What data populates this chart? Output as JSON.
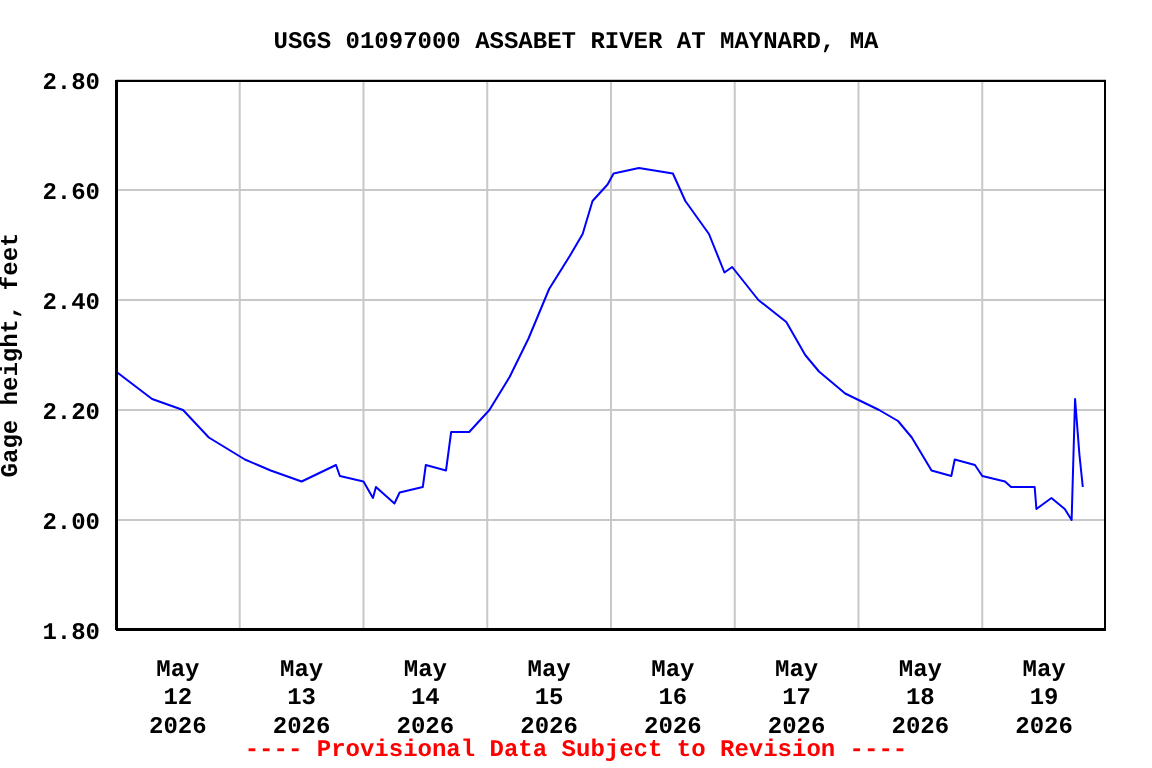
{
  "chart_data": {
    "type": "line",
    "title": "USGS 01097000 ASSABET RIVER AT MAYNARD, MA",
    "ylabel": "Gage height, feet",
    "annotations": [
      "---- Provisional Data Subject to Revision ----"
    ],
    "x": [
      "2026-05-12T00:00",
      "2026-05-12T07:00",
      "2026-05-12T13:00",
      "2026-05-12T18:00",
      "2026-05-13T01:00",
      "2026-05-13T06:00",
      "2026-05-13T12:00",
      "2026-05-13T18:40",
      "2026-05-13T19:25",
      "2026-05-14T00:00",
      "2026-05-14T01:50",
      "2026-05-14T02:25",
      "2026-05-14T06:00",
      "2026-05-14T07:00",
      "2026-05-14T11:30",
      "2026-05-14T12:05",
      "2026-05-14T16:00",
      "2026-05-14T17:00",
      "2026-05-14T20:30",
      "2026-05-15T00:25",
      "2026-05-15T04:20",
      "2026-05-15T08:00",
      "2026-05-15T12:00",
      "2026-05-15T16:00",
      "2026-05-15T18:30",
      "2026-05-15T20:25",
      "2026-05-15T23:20",
      "2026-05-16T00:30",
      "2026-05-16T05:25",
      "2026-05-16T12:00",
      "2026-05-16T14:25",
      "2026-05-16T19:00",
      "2026-05-16T22:00",
      "2026-05-16T23:30",
      "2026-05-17T04:35",
      "2026-05-17T10:00",
      "2026-05-17T13:40",
      "2026-05-17T16:20",
      "2026-05-17T21:25",
      "2026-05-18T04:00",
      "2026-05-18T07:40",
      "2026-05-18T10:20",
      "2026-05-18T14:10",
      "2026-05-18T18:00",
      "2026-05-18T18:40",
      "2026-05-18T22:35",
      "2026-05-19T00:00",
      "2026-05-19T04:25",
      "2026-05-19T05:35",
      "2026-05-19T10:10",
      "2026-05-19T10:30",
      "2026-05-19T13:25",
      "2026-05-19T16:00",
      "2026-05-19T17:20",
      "2026-05-19T18:00",
      "2026-05-19T18:50",
      "2026-05-19T19:30"
    ],
    "series": [
      {
        "color": "#0000ff",
        "values": [
          2.27,
          2.22,
          2.2,
          2.15,
          2.11,
          2.09,
          2.07,
          2.1,
          2.08,
          2.07,
          2.04,
          2.06,
          2.03,
          2.05,
          2.06,
          2.1,
          2.09,
          2.16,
          2.16,
          2.2,
          2.26,
          2.33,
          2.42,
          2.48,
          2.52,
          2.58,
          2.61,
          2.63,
          2.64,
          2.63,
          2.58,
          2.52,
          2.45,
          2.46,
          2.4,
          2.36,
          2.3,
          2.27,
          2.23,
          2.2,
          2.18,
          2.15,
          2.09,
          2.08,
          2.11,
          2.1,
          2.08,
          2.07,
          2.06,
          2.06,
          2.02,
          2.04,
          2.02,
          2.0,
          2.22,
          2.12,
          2.06
        ]
      }
    ],
    "xlim": [
      "2026-05-12T00:00",
      "2026-05-20T00:00"
    ],
    "xticks": [
      {
        "value": "2026-05-12T12:00",
        "label": "May\n12\n2026"
      },
      {
        "value": "2026-05-13T00:00",
        "label": null
      },
      {
        "value": "2026-05-13T12:00",
        "label": "May\n13\n2026"
      },
      {
        "value": "2026-05-14T00:00",
        "label": null
      },
      {
        "value": "2026-05-14T12:00",
        "label": "May\n14\n2026"
      },
      {
        "value": "2026-05-15T00:00",
        "label": null
      },
      {
        "value": "2026-05-15T12:00",
        "label": "May\n15\n2026"
      },
      {
        "value": "2026-05-16T00:00",
        "label": null
      },
      {
        "value": "2026-05-16T12:00",
        "label": "May\n16\n2026"
      },
      {
        "value": "2026-05-17T00:00",
        "label": null
      },
      {
        "value": "2026-05-17T12:00",
        "label": "May\n17\n2026"
      },
      {
        "value": "2026-05-18T00:00",
        "label": null
      },
      {
        "value": "2026-05-18T12:00",
        "label": "May\n18\n2026"
      },
      {
        "value": "2026-05-19T00:00",
        "label": null
      },
      {
        "value": "2026-05-19T12:00",
        "label": "May\n19\n2026"
      }
    ],
    "ylim": [
      1.8,
      2.8
    ],
    "yticks": [
      {
        "value": 1.8,
        "label": "1.80"
      },
      {
        "value": 2.0,
        "label": "2.00"
      },
      {
        "value": 2.2,
        "label": "2.20"
      },
      {
        "value": 2.4,
        "label": "2.40"
      },
      {
        "value": 2.6,
        "label": "2.60"
      },
      {
        "value": 2.8,
        "label": "2.80"
      }
    ],
    "grid": true,
    "legend": false,
    "line_style": "solid",
    "marker": "none"
  }
}
